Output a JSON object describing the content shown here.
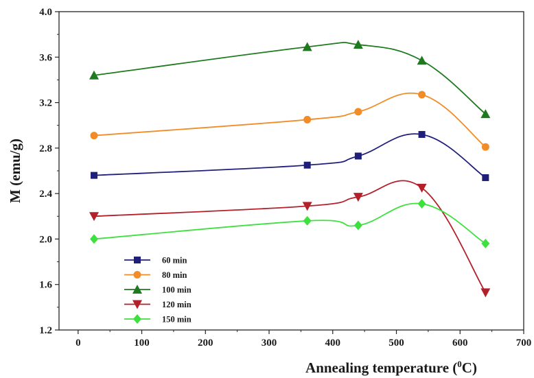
{
  "chart_data": {
    "type": "line",
    "title": "",
    "xlabel": "Annealing temperature (",
    "xlabel_superscript": "0",
    "xlabel_suffix": "C)",
    "ylabel": "M (emu/g)",
    "xlim": [
      -30,
      700
    ],
    "ylim": [
      1.2,
      4.0
    ],
    "x_ticks": [
      "0",
      "100",
      "200",
      "300",
      "400",
      "500",
      "600",
      "700"
    ],
    "y_ticks": [
      "1.2",
      "1.6",
      "2.0",
      "2.4",
      "2.8",
      "3.2",
      "3.6",
      "4.0"
    ],
    "grid": false,
    "legend_position": "bottom-left",
    "smooth": true,
    "x": [
      25,
      360,
      440,
      540,
      640
    ],
    "series": [
      {
        "name": "60 min",
        "color": "#1f1f7a",
        "marker": "square",
        "values": [
          2.56,
          2.65,
          2.73,
          2.92,
          2.54
        ]
      },
      {
        "name": "80 min",
        "color": "#f28c28",
        "marker": "circle",
        "values": [
          2.91,
          3.05,
          3.12,
          3.27,
          2.81
        ]
      },
      {
        "name": "100 min",
        "color": "#1e7a1e",
        "marker": "triangle-up",
        "values": [
          3.44,
          3.69,
          3.71,
          3.57,
          3.1
        ]
      },
      {
        "name": "120 min",
        "color": "#b3202a",
        "marker": "triangle-down",
        "values": [
          2.2,
          2.29,
          2.37,
          2.45,
          1.53
        ]
      },
      {
        "name": "150 min",
        "color": "#3ee03e",
        "marker": "diamond",
        "values": [
          2.0,
          2.16,
          2.12,
          2.31,
          1.96
        ]
      }
    ]
  }
}
